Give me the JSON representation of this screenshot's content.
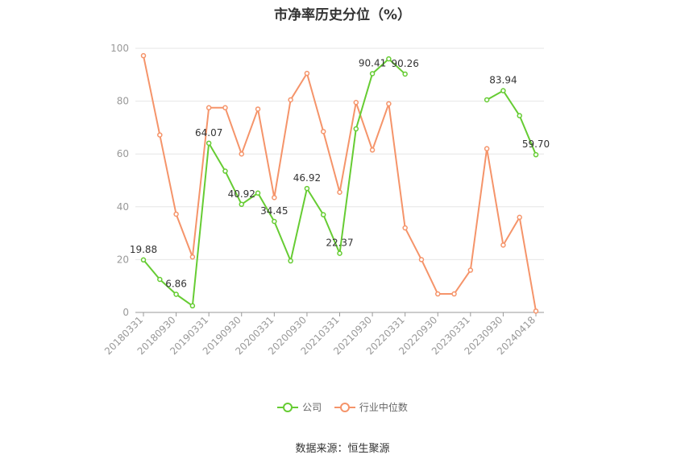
{
  "chart_data": {
    "type": "line",
    "title": "市净率历史分位（%）",
    "ylim": [
      0,
      100
    ],
    "yticks": [
      0,
      20,
      40,
      60,
      80,
      100
    ],
    "grid": true,
    "legend_position": "bottom",
    "x": [
      "20180331",
      "20180630",
      "20180930",
      "20181231",
      "20190331",
      "20190630",
      "20190930",
      "20191231",
      "20200331",
      "20200630",
      "20200930",
      "20201231",
      "20210331",
      "20210630",
      "20210930",
      "20211231",
      "20220331",
      "20220630",
      "20220930",
      "20221231",
      "20230331",
      "20230630",
      "20230930",
      "20231231",
      "20240418"
    ],
    "x_tick_labels": [
      "20180331",
      "20180930",
      "20190331",
      "20190930",
      "20200331",
      "20200930",
      "20210331",
      "20210930",
      "20220331",
      "20220930",
      "20230331",
      "20230930",
      "20240418"
    ],
    "series": [
      {
        "name": "公司",
        "color": "#66cc33",
        "values": [
          19.88,
          12.5,
          6.86,
          2.5,
          64.07,
          53.5,
          40.92,
          45.2,
          34.45,
          19.5,
          46.92,
          37.0,
          22.37,
          69.5,
          90.41,
          96.0,
          90.26,
          null,
          null,
          null,
          null,
          80.5,
          83.94,
          74.5,
          59.7
        ],
        "labels": {
          "0": "19.88",
          "2": "6.86",
          "4": "64.07",
          "6": "40.92",
          "8": "34.45",
          "10": "46.92",
          "12": "22.37",
          "14": "90.41",
          "16": "90.26",
          "22": "83.94",
          "24": "59.70"
        }
      },
      {
        "name": "行业中位数",
        "color": "#f5946a",
        "values": [
          97.2,
          67.2,
          37.2,
          21.0,
          77.5,
          77.5,
          60.0,
          77.0,
          43.5,
          80.5,
          90.5,
          68.5,
          45.5,
          79.5,
          61.5,
          79.0,
          32.0,
          20.0,
          7.0,
          7.0,
          16.0,
          62.0,
          25.5,
          36.0,
          0.5
        ]
      }
    ]
  },
  "source_text": "数据来源：恒生聚源"
}
